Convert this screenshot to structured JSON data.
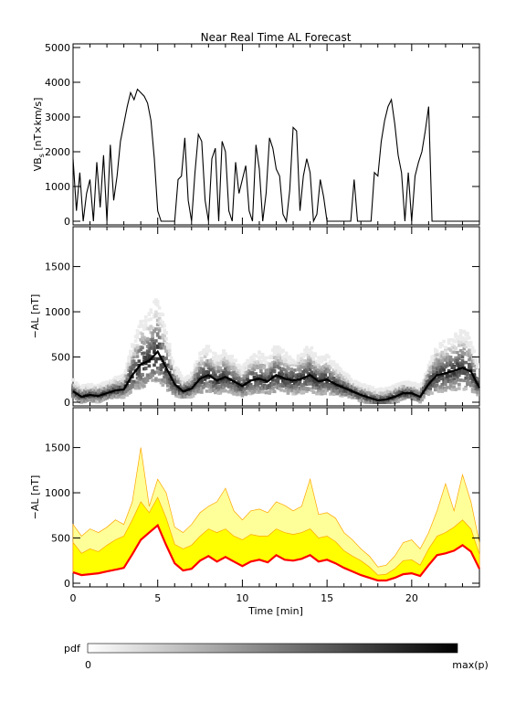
{
  "title": "Near Real Time AL Forecast",
  "colors": {
    "axis": "#000000",
    "median_line": "#ff0000",
    "band_outer": "#ffff99",
    "band_inner": "#ffff00",
    "band_edge": "#ffa500",
    "pdf_min": "#ffffff",
    "pdf_max": "#000000"
  },
  "chart_data": [
    {
      "type": "line",
      "panel": "top",
      "ylabel": "VB$_s$ [nT×km/s]",
      "ylabel_main": "VB",
      "ylabel_sub": "s",
      "ylabel_rest": " [nT×km/s]",
      "ylim": [
        0,
        5000
      ],
      "xlim": [
        0,
        24
      ],
      "y_ticks": [
        "0",
        "1000",
        "2000",
        "3000",
        "4000",
        "5000"
      ],
      "series": [
        {
          "x": [
            0,
            0.2,
            0.4,
            0.6,
            0.8,
            1.0,
            1.2,
            1.4,
            1.6,
            1.8,
            2.0,
            2.2,
            2.4,
            2.6,
            2.8,
            3.0,
            3.2,
            3.4,
            3.6,
            3.8,
            4.0,
            4.2,
            4.4,
            4.6,
            4.8,
            5.0,
            5.2,
            5.4,
            5.6,
            5.8,
            6.0,
            6.2,
            6.4,
            6.6,
            6.8,
            7.0,
            7.2,
            7.4,
            7.6,
            7.8,
            8.0,
            8.2,
            8.4,
            8.6,
            8.8,
            9.0,
            9.2,
            9.4,
            9.6,
            9.8,
            10.0,
            10.2,
            10.4,
            10.6,
            10.8,
            11.0,
            11.2,
            11.4,
            11.6,
            11.8,
            12.0,
            12.2,
            12.4,
            12.6,
            12.8,
            13.0,
            13.2,
            13.4,
            13.6,
            13.8,
            14.0,
            14.2,
            14.4,
            14.6,
            14.8,
            15.0,
            15.2,
            15.4,
            15.6,
            15.8,
            16.0,
            16.2,
            16.4,
            16.6,
            16.8,
            17.0,
            17.2,
            17.4,
            17.6,
            17.8,
            18.0,
            18.2,
            18.4,
            18.6,
            18.8,
            19.0,
            19.2,
            19.4,
            19.6,
            19.8,
            20.0,
            20.2,
            20.4,
            20.6,
            20.8,
            21.0,
            21.2,
            21.4,
            21.6,
            21.8,
            22.0,
            22.2,
            22.4,
            22.6,
            22.8,
            23.0,
            23.2,
            23.4,
            23.6,
            23.8,
            24.0
          ],
          "y": [
            1800,
            300,
            1400,
            0,
            800,
            1200,
            0,
            1700,
            400,
            1900,
            0,
            2200,
            600,
            1300,
            2300,
            2800,
            3300,
            3700,
            3500,
            3800,
            3700,
            3600,
            3400,
            2900,
            1800,
            300,
            0,
            0,
            0,
            0,
            0,
            1200,
            1300,
            2400,
            600,
            0,
            1400,
            2500,
            2300,
            600,
            0,
            1800,
            2100,
            0,
            2300,
            2000,
            300,
            0,
            1700,
            800,
            1200,
            1600,
            300,
            0,
            2200,
            1500,
            0,
            800,
            2400,
            2100,
            1500,
            1300,
            200,
            0,
            900,
            2700,
            2600,
            300,
            1300,
            1800,
            1400,
            0,
            200,
            1200,
            700,
            0,
            0,
            0,
            0,
            0,
            0,
            0,
            0,
            1200,
            0,
            0,
            0,
            0,
            0,
            1400,
            1300,
            2300,
            2900,
            3300,
            3500,
            2800,
            1900,
            1400,
            0,
            1400,
            0,
            1300,
            1700,
            2000,
            2600,
            3300,
            0,
            0,
            0,
            0,
            0,
            0,
            0,
            0,
            0,
            0,
            0,
            0,
            0,
            0,
            0
          ]
        }
      ]
    },
    {
      "type": "heatmap",
      "panel": "middle",
      "ylabel": "−AL [nT]",
      "ylim": [
        0,
        1900
      ],
      "xlim": [
        0,
        24
      ],
      "y_ticks": [
        "0",
        "500",
        "1000",
        "1500"
      ],
      "median": {
        "x": [
          0,
          0.5,
          1,
          1.5,
          2,
          2.5,
          3,
          3.5,
          4,
          4.5,
          5,
          5.5,
          6,
          6.5,
          7,
          7.5,
          8,
          8.5,
          9,
          9.5,
          10,
          10.5,
          11,
          11.5,
          12,
          12.5,
          13,
          13.5,
          14,
          14.5,
          15,
          15.5,
          16,
          16.5,
          17,
          17.5,
          18,
          18.5,
          19,
          19.5,
          20,
          20.5,
          21,
          21.5,
          22,
          22.5,
          23,
          23.5,
          24
        ],
        "y": [
          120,
          60,
          80,
          70,
          100,
          130,
          140,
          300,
          420,
          460,
          560,
          380,
          200,
          120,
          150,
          260,
          300,
          240,
          280,
          230,
          180,
          240,
          260,
          230,
          300,
          260,
          240,
          260,
          300,
          230,
          250,
          200,
          160,
          120,
          80,
          50,
          20,
          30,
          60,
          100,
          100,
          60,
          200,
          300,
          320,
          350,
          380,
          340,
          160
        ]
      }
    },
    {
      "type": "area",
      "panel": "bottom",
      "ylabel": "−AL [nT]",
      "xlabel": "Time [min]",
      "ylim": [
        0,
        1900
      ],
      "xlim": [
        0,
        24
      ],
      "x_ticks": [
        "0",
        "5",
        "10",
        "15",
        "20"
      ],
      "y_ticks": [
        "0",
        "500",
        "1000",
        "1500"
      ],
      "series": [
        {
          "name": "",
          "x": [
            0,
            0.5,
            1,
            1.5,
            2,
            2.5,
            3,
            3.5,
            4,
            4.5,
            5,
            5.5,
            6,
            6.5,
            7,
            7.5,
            8,
            8.5,
            9,
            9.5,
            10,
            10.5,
            11,
            11.5,
            12,
            12.5,
            13,
            13.5,
            14,
            14.5,
            15,
            15.5,
            16,
            16.5,
            17,
            17.5,
            18,
            18.5,
            19,
            19.5,
            20,
            20.5,
            21,
            21.5,
            22,
            22.5,
            23,
            23.5,
            24
          ],
          "median": [
            120,
            90,
            100,
            110,
            130,
            150,
            170,
            320,
            480,
            560,
            640,
            420,
            220,
            140,
            160,
            250,
            300,
            240,
            290,
            240,
            190,
            240,
            260,
            230,
            310,
            260,
            250,
            270,
            310,
            240,
            260,
            220,
            170,
            130,
            90,
            60,
            30,
            30,
            60,
            100,
            110,
            80,
            200,
            310,
            330,
            360,
            420,
            350,
            160
          ],
          "p75": [
            450,
            330,
            380,
            350,
            420,
            480,
            520,
            700,
            900,
            780,
            950,
            720,
            430,
            380,
            420,
            520,
            600,
            560,
            600,
            520,
            480,
            540,
            520,
            520,
            600,
            560,
            540,
            560,
            600,
            500,
            520,
            460,
            360,
            300,
            250,
            180,
            90,
            100,
            160,
            250,
            260,
            200,
            380,
            520,
            560,
            620,
            700,
            600,
            320
          ],
          "p95": [
            650,
            520,
            600,
            560,
            620,
            700,
            650,
            900,
            1500,
            850,
            1150,
            1000,
            620,
            560,
            650,
            780,
            850,
            900,
            1050,
            800,
            700,
            800,
            820,
            780,
            900,
            860,
            800,
            850,
            1150,
            760,
            780,
            720,
            560,
            480,
            380,
            300,
            180,
            200,
            300,
            450,
            480,
            380,
            560,
            800,
            1100,
            800,
            1200,
            900,
            450
          ]
        }
      ]
    }
  ],
  "colorbar": {
    "label": "pdf",
    "min_label": "0",
    "max_label": "max(p)"
  }
}
